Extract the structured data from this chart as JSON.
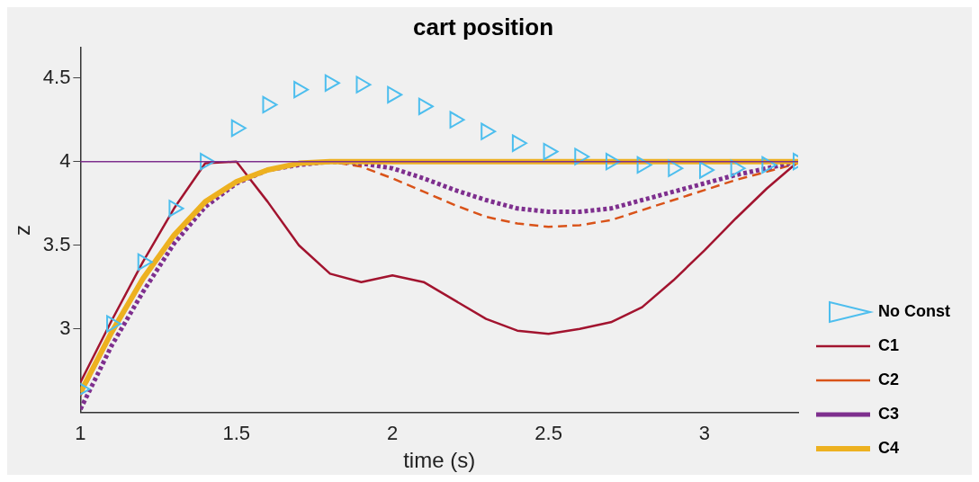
{
  "chart_data": {
    "type": "line",
    "title": "cart position",
    "xlabel": "time (s)",
    "ylabel": "z",
    "x": [
      1.0,
      1.1,
      1.2,
      1.3,
      1.4,
      1.5,
      1.6,
      1.7,
      1.8,
      1.9,
      2.0,
      2.1,
      2.2,
      2.3,
      2.4,
      2.5,
      2.6,
      2.7,
      2.8,
      2.9,
      3.0,
      3.1,
      3.2,
      3.3
    ],
    "series": [
      {
        "name": "No Const",
        "type": "scatter",
        "marker": "triangle",
        "color": "#4dbeee",
        "values": [
          2.64,
          3.03,
          3.4,
          3.72,
          4.0,
          4.2,
          4.34,
          4.43,
          4.47,
          4.46,
          4.4,
          4.33,
          4.25,
          4.18,
          4.11,
          4.06,
          4.03,
          4.0,
          3.98,
          3.96,
          3.95,
          3.96,
          3.98,
          4.0
        ]
      },
      {
        "name": "C1",
        "line_style": "solid",
        "color": "#a2142f",
        "values": [
          2.68,
          3.05,
          3.4,
          3.72,
          3.99,
          4.0,
          3.76,
          3.5,
          3.33,
          3.28,
          3.32,
          3.28,
          3.17,
          3.06,
          2.99,
          2.97,
          3.0,
          3.04,
          3.13,
          3.29,
          3.47,
          3.66,
          3.84,
          4.0
        ]
      },
      {
        "name": "C2",
        "line_style": "dashed",
        "color": "#d95319",
        "values": [
          2.6,
          2.97,
          3.29,
          3.56,
          3.76,
          3.88,
          3.95,
          3.99,
          4.0,
          3.97,
          3.9,
          3.82,
          3.74,
          3.67,
          3.63,
          3.61,
          3.62,
          3.65,
          3.71,
          3.77,
          3.83,
          3.89,
          3.94,
          3.99
        ]
      },
      {
        "name": "C3",
        "line_style": "dotted",
        "color": "#7e2f8e",
        "values": [
          2.52,
          2.9,
          3.22,
          3.51,
          3.73,
          3.87,
          3.95,
          3.98,
          4.0,
          3.99,
          3.96,
          3.9,
          3.83,
          3.77,
          3.72,
          3.7,
          3.7,
          3.72,
          3.77,
          3.82,
          3.87,
          3.92,
          3.96,
          4.0
        ]
      },
      {
        "name": "C4",
        "line_style": "solid",
        "color": "#edb120",
        "values": [
          2.62,
          2.98,
          3.3,
          3.56,
          3.76,
          3.88,
          3.95,
          3.99,
          4.0,
          4.0,
          4.0,
          4.0,
          4.0,
          4.0,
          4.0,
          4.0,
          4.0,
          4.0,
          4.0,
          4.0,
          4.0,
          4.0,
          4.0,
          4.0
        ]
      }
    ],
    "ref_lines": [
      {
        "axis": "y",
        "value": 4,
        "color": "#7e2f8e",
        "line_style": "solid"
      }
    ],
    "xlim": [
      1,
      3.3
    ],
    "xticks": [
      1,
      1.5,
      2,
      2.5,
      3
    ],
    "ylim": [
      2.5,
      4.68
    ],
    "yticks": [
      3,
      3.5,
      4,
      4.5
    ],
    "legend": "bottom right"
  }
}
